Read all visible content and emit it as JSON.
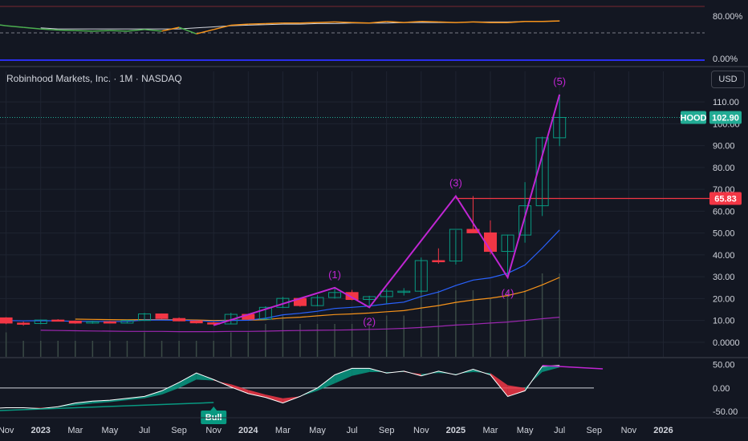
{
  "header": {
    "title": "Robinhood Markets, Inc. · 1M · NASDAQ"
  },
  "currency_button": "USD",
  "chart_data": [
    {
      "type": "candlestick",
      "title": "Robinhood Markets, Inc. · 1M · NASDAQ",
      "symbol": "HOOD",
      "last_price_label": "102.90",
      "horizontal_level_label": "65.83",
      "horizontal_level": 65.83,
      "y_ticks": [
        "110.00",
        "100.00",
        "90.00",
        "80.00",
        "70.00",
        "60.00",
        "50.00",
        "40.00",
        "30.00",
        "20.00",
        "10.00",
        "0.0000"
      ],
      "ylim": [
        -7,
        124
      ],
      "x_ticks": [
        "Sep",
        "Nov",
        "2023",
        "Mar",
        "May",
        "Jul",
        "Sep",
        "Nov",
        "2024",
        "Mar",
        "May",
        "Jul",
        "Sep",
        "Nov",
        "2025",
        "Mar",
        "May",
        "Jul",
        "Sep",
        "Nov",
        "2026"
      ],
      "months": [
        "2022-09",
        "2022-10",
        "2022-11",
        "2022-12",
        "2023-01",
        "2023-02",
        "2023-03",
        "2023-04",
        "2023-05",
        "2023-06",
        "2023-07",
        "2023-08",
        "2023-09",
        "2023-10",
        "2023-11",
        "2023-12",
        "2024-01",
        "2024-02",
        "2024-03",
        "2024-04",
        "2024-05",
        "2024-06",
        "2024-07",
        "2024-08",
        "2024-09",
        "2024-10",
        "2024-11",
        "2024-12",
        "2025-01",
        "2025-02",
        "2025-03",
        "2025-04",
        "2025-05",
        "2025-06",
        "2025-07"
      ],
      "ohlc": [
        [
          9.5,
          10.5,
          9.2,
          10.2
        ],
        [
          10.2,
          11.6,
          9.8,
          11.2
        ],
        [
          11.2,
          11.5,
          8.3,
          8.8
        ],
        [
          8.8,
          9.5,
          7.6,
          8.6
        ],
        [
          8.6,
          10.4,
          8.3,
          10.2
        ],
        [
          10.2,
          10.6,
          9.6,
          9.7
        ],
        [
          9.7,
          10.0,
          8.5,
          8.8
        ],
        [
          8.8,
          9.9,
          8.5,
          9.4
        ],
        [
          9.4,
          9.8,
          8.6,
          8.8
        ],
        [
          8.8,
          10.2,
          8.8,
          10.0
        ],
        [
          10.0,
          13.5,
          9.8,
          13.0
        ],
        [
          13.0,
          13.2,
          10.6,
          10.9
        ],
        [
          10.9,
          11.4,
          9.6,
          9.8
        ],
        [
          9.8,
          10.0,
          8.6,
          8.9
        ],
        [
          8.9,
          9.3,
          7.8,
          8.4
        ],
        [
          8.4,
          13.5,
          8.2,
          12.8
        ],
        [
          12.8,
          13.0,
          10.3,
          10.6
        ],
        [
          10.6,
          16.5,
          10.4,
          16.0
        ],
        [
          16.0,
          20.8,
          15.7,
          20.1
        ],
        [
          20.1,
          20.3,
          16.3,
          16.8
        ],
        [
          16.8,
          21.6,
          16.5,
          20.5
        ],
        [
          20.5,
          24.9,
          20.0,
          22.8
        ],
        [
          22.8,
          24.0,
          19.2,
          19.6
        ],
        [
          19.6,
          21.3,
          16.0,
          20.9
        ],
        [
          20.9,
          24.5,
          17.8,
          23.4
        ],
        [
          23.4,
          24.8,
          21.4,
          23.4
        ],
        [
          23.4,
          38.8,
          22.5,
          37.4
        ],
        [
          37.4,
          43.0,
          36.0,
          37.2
        ],
        [
          37.2,
          51.3,
          35.6,
          51.7
        ],
        [
          51.7,
          66.9,
          50.2,
          50.1
        ],
        [
          50.1,
          55.8,
          40.2,
          41.6
        ],
        [
          41.6,
          49.3,
          29.7,
          49.1
        ],
        [
          49.1,
          73.3,
          45.6,
          62.5
        ],
        [
          62.5,
          94.1,
          57.8,
          93.6
        ],
        [
          93.6,
          113.4,
          89.8,
          102.9
        ]
      ],
      "volume": [
        2,
        2,
        3,
        2,
        2,
        2,
        2,
        2,
        2,
        2,
        3,
        2,
        2,
        2,
        2,
        3,
        3,
        4,
        5,
        4,
        4,
        4,
        4,
        4,
        5,
        5,
        8,
        8,
        8,
        8,
        7,
        8,
        8,
        10,
        10
      ],
      "ema_fast": [
        10.0,
        10.2,
        10.0,
        9.8,
        9.9,
        9.8,
        9.6,
        9.6,
        9.5,
        9.6,
        10.2,
        10.2,
        10.1,
        9.9,
        9.6,
        10.0,
        10.1,
        11.0,
        12.6,
        13.3,
        14.2,
        15.5,
        16.0,
        16.6,
        17.6,
        18.4,
        21.0,
        23.0,
        26.0,
        28.5,
        29.5,
        31.6,
        35.4,
        43.1,
        51.4
      ],
      "ema_slow": [
        11.5,
        11.3,
        11.1,
        10.9,
        10.8,
        10.7,
        10.6,
        10.5,
        10.4,
        10.3,
        10.4,
        10.4,
        10.3,
        10.2,
        10.0,
        10.1,
        10.1,
        10.4,
        11.1,
        11.5,
        12.1,
        12.7,
        13.0,
        13.4,
        14.0,
        14.5,
        15.7,
        16.8,
        18.3,
        19.4,
        20.2,
        21.4,
        23.3,
        26.3,
        29.7
      ],
      "ma_volume": [
        5.9,
        5.9,
        5.8,
        5.6,
        5.5,
        5.4,
        5.3,
        5.2,
        5.1,
        5.0,
        5.0,
        5.0,
        4.9,
        4.9,
        4.9,
        5.0,
        5.0,
        5.1,
        5.3,
        5.4,
        5.5,
        5.6,
        5.7,
        5.9,
        6.1,
        6.4,
        6.8,
        7.3,
        7.9,
        8.3,
        8.8,
        9.3,
        10.0,
        10.8,
        11.5
      ],
      "elliott_waves": [
        {
          "label": "(1)",
          "month": "2024-06",
          "value": 25.0
        },
        {
          "label": "(2)",
          "month": "2024-08",
          "value": 16.0
        },
        {
          "label": "(3)",
          "month": "2025-01",
          "value": 66.9
        },
        {
          "label": "(4)",
          "month": "2025-04",
          "value": 29.7
        },
        {
          "label": "(5)",
          "month": "2025-07",
          "value": 113.4
        }
      ],
      "wave_start": {
        "month": "2023-11",
        "value": 7.8
      }
    },
    {
      "type": "line",
      "name": "upper oscillator",
      "y_ticks": [
        "80.00%",
        "0.00%"
      ],
      "series_a": [
        72,
        68,
        64,
        61,
        58,
        56,
        55,
        54,
        55,
        54,
        57,
        54,
        61,
        49,
        57,
        65,
        67,
        68,
        69,
        69,
        70,
        71,
        70,
        69,
        72,
        70,
        72,
        71,
        70,
        71,
        70,
        70,
        72,
        72,
        73
      ],
      "series_b": [
        74,
        70,
        66,
        63,
        60,
        58,
        58,
        58,
        58,
        58,
        58,
        58,
        58,
        60,
        62,
        64,
        65,
        66,
        67,
        67,
        68,
        68,
        69,
        69,
        69,
        70,
        70,
        70,
        70,
        71,
        71,
        71,
        72,
        72,
        73
      ]
    },
    {
      "type": "area",
      "name": "lower oscillator",
      "y_ticks": [
        "50.00",
        "0.00",
        "-50.00"
      ],
      "ylim": [
        -60,
        58
      ],
      "series_macd": [
        -46,
        -44,
        -42,
        -42,
        -44,
        -40,
        -32,
        -28,
        -26,
        -22,
        -18,
        -6,
        12,
        32,
        18,
        2,
        -12,
        -20,
        -32,
        -18,
        0,
        28,
        42,
        42,
        32,
        36,
        26,
        36,
        28,
        40,
        28,
        -18,
        -6,
        46,
        48
      ],
      "series_signal": [
        -44,
        -44,
        -43,
        -42,
        -42,
        -41,
        -37,
        -33,
        -30,
        -26,
        -22,
        -14,
        0,
        18,
        16,
        8,
        -4,
        -14,
        -22,
        -18,
        -6,
        10,
        26,
        34,
        34,
        34,
        30,
        32,
        30,
        34,
        32,
        6,
        0,
        34,
        44
      ],
      "signal_tail": [
        44,
        42,
        40
      ],
      "divergence_label": "Bull"
    }
  ],
  "colors": {
    "background": "#131722",
    "grid": "#1f2431",
    "up": "#089981",
    "down": "#f23645",
    "wave": "#c026d3",
    "ema_fast": "#2962ff",
    "ema_slow": "#f7931a",
    "ma_volume": "#9c27b0",
    "price_line": "#22ab94",
    "level_line": "#f23645"
  }
}
